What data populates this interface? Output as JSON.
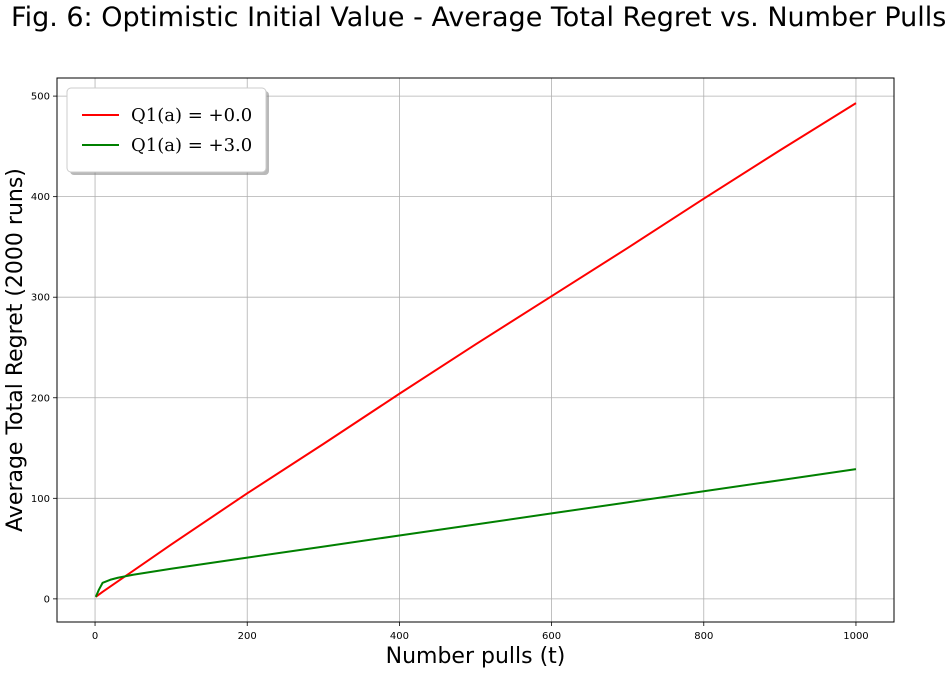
{
  "chart_data": {
    "type": "line",
    "title": "Fig. 6: Optimistic Initial Value - Average Total Regret vs. Number Pulls",
    "xlabel": "Number pulls (t)",
    "ylabel": "Average Total Regret (2000 runs)",
    "xlim": [
      -50,
      1050
    ],
    "ylim": [
      -23,
      518
    ],
    "xticks": [
      0,
      200,
      400,
      600,
      800,
      1000
    ],
    "yticks": [
      0,
      100,
      200,
      300,
      400,
      500
    ],
    "grid": true,
    "legend_position": "top-left",
    "series": [
      {
        "name": "Q1(a) = +0.0",
        "color": "#ff0000",
        "x": [
          1,
          10,
          100,
          200,
          300,
          400,
          500,
          600,
          700,
          800,
          900,
          1000
        ],
        "y": [
          2,
          7,
          54,
          105,
          154,
          204,
          253,
          301,
          349,
          398,
          446,
          493
        ]
      },
      {
        "name": "Q1(a) = +3.0",
        "color": "#008000",
        "x": [
          1,
          5,
          10,
          20,
          30,
          50,
          100,
          200,
          300,
          400,
          500,
          600,
          700,
          800,
          900,
          1000
        ],
        "y": [
          2,
          9,
          16,
          19,
          21,
          24,
          30,
          41,
          52,
          63,
          74,
          85,
          96,
          107,
          118,
          129
        ]
      }
    ]
  }
}
